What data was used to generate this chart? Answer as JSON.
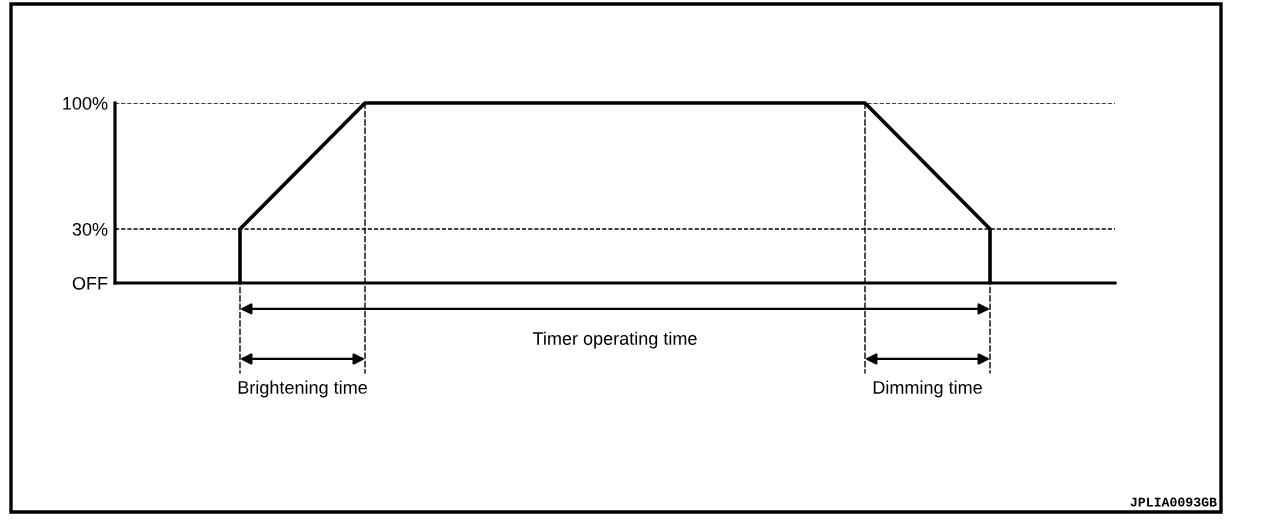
{
  "chart_data": {
    "type": "line",
    "categories": [
      null,
      null,
      null,
      null,
      null,
      null,
      null,
      null,
      null
    ],
    "series": [
      {
        "color": "#000000",
        "values": [
          null,
          30,
          100,
          100,
          100,
          100,
          100,
          30,
          null
        ],
        "errors": [
          null,
          [
            0,
            30
          ],
          null,
          null,
          null,
          null,
          null,
          [
            0,
            30
          ],
          null
        ]
      }
    ],
    "ylim": [
      0,
      100
    ],
    "yticks": [
      {
        "value": 0,
        "label": "OFF"
      },
      {
        "value": 30,
        "label": "30%"
      },
      {
        "value": 100,
        "label": "100%"
      }
    ],
    "grid": "y",
    "annotations": [
      "Timer operating time",
      "Brightening time",
      "Dimming time",
      "JPLIA0093GB"
    ]
  }
}
